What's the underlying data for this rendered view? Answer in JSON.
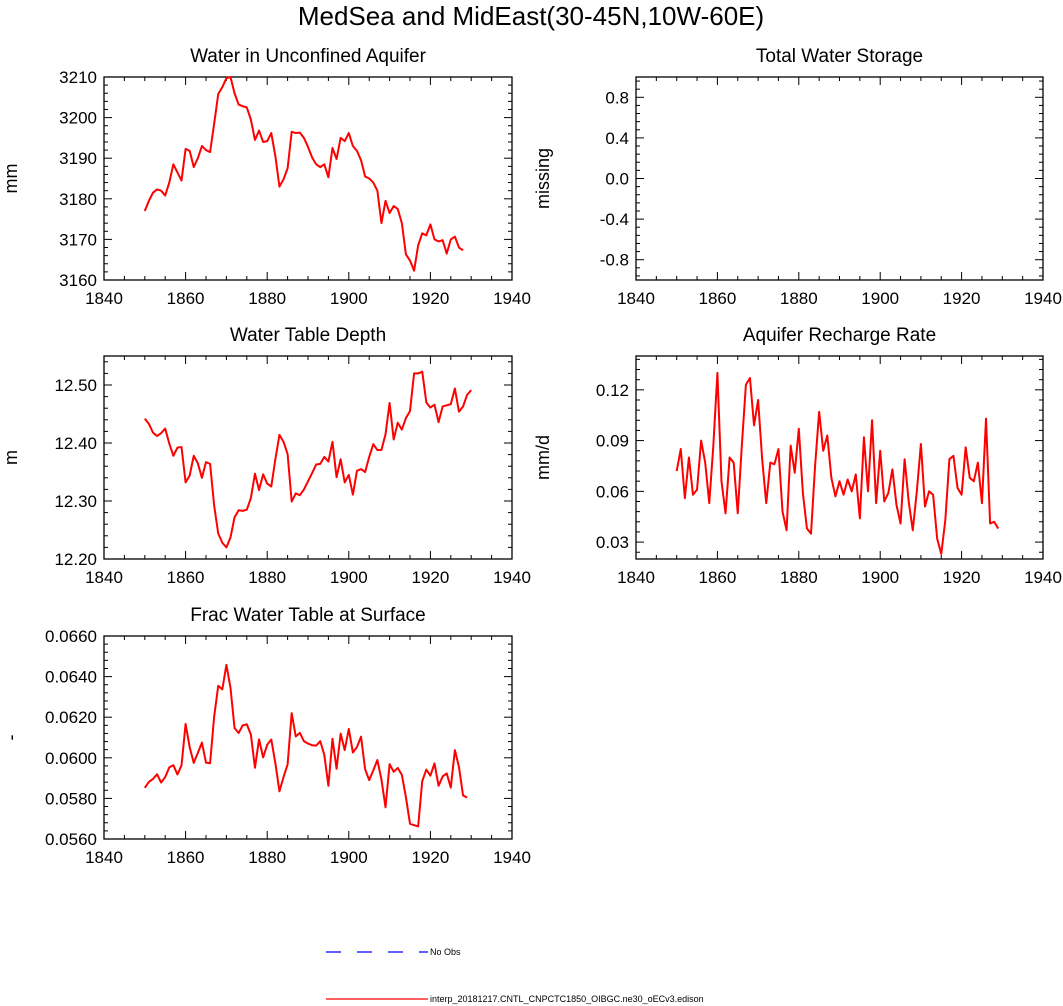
{
  "figure": {
    "title": "MedSea and MidEast(30-45N,10W-60E)"
  },
  "colors": {
    "model": "#ff0000",
    "obs": "#0000ff",
    "axis": "#000000"
  },
  "legend": [
    {
      "label": "No Obs",
      "style": "dashed",
      "color": "#0000ff"
    },
    {
      "label": "interp_20181217.CNTL_CNPCTC1850_OIBGC.ne30_oECv3.edison",
      "style": "solid",
      "color": "#ff0000"
    }
  ],
  "chart_data": [
    {
      "type": "line",
      "title": "Water in Unconfined Aquifer",
      "xlabel": "",
      "ylabel": "mm",
      "xlim": [
        1840,
        1940
      ],
      "ylim": [
        3160,
        3210
      ],
      "xticks": [
        "1840",
        "1860",
        "1880",
        "1900",
        "1920",
        "1940"
      ],
      "yticks": [
        "3160",
        "3170",
        "3180",
        "3190",
        "3200",
        "3210"
      ],
      "x_start": 1850,
      "values": [
        3177.0,
        3179.5,
        3181.5,
        3182.3,
        3182.0,
        3180.8,
        3184.0,
        3188.5,
        3186.5,
        3184.5,
        3192.3,
        3191.8,
        3187.8,
        3190.0,
        3193.0,
        3192.0,
        3191.5,
        3198.5,
        3205.8,
        3207.5,
        3209.7,
        3210.0,
        3206.0,
        3203.2,
        3202.8,
        3202.5,
        3199.5,
        3194.5,
        3196.8,
        3194.0,
        3194.2,
        3196.2,
        3190.5,
        3183.0,
        3184.8,
        3187.5,
        3196.5,
        3196.2,
        3196.3,
        3195.0,
        3192.8,
        3190.2,
        3188.5,
        3187.8,
        3188.5,
        3185.3,
        3192.5,
        3189.8,
        3195.0,
        3194.2,
        3196.2,
        3193.0,
        3191.8,
        3189.5,
        3185.5,
        3185.0,
        3184.0,
        3182.0,
        3174.0,
        3179.5,
        3176.5,
        3178.2,
        3177.5,
        3174.0,
        3166.3,
        3164.8,
        3162.3,
        3168.5,
        3171.5,
        3171.0,
        3173.7,
        3170.0,
        3169.5,
        3169.8,
        3166.5,
        3170.0,
        3170.7,
        3168.0,
        3167.3
      ]
    },
    {
      "type": "line",
      "title": "Total Water Storage",
      "xlabel": "",
      "ylabel": "missing",
      "xlim": [
        1840,
        1940
      ],
      "ylim": [
        -1,
        1
      ],
      "xticks": [
        "1840",
        "1860",
        "1880",
        "1900",
        "1920",
        "1940"
      ],
      "yticks": [
        "-0.8",
        "-0.4",
        "0.0",
        "0.4",
        "0.8"
      ],
      "ytick_values": [
        -0.8,
        -0.4,
        0.0,
        0.4,
        0.8
      ],
      "x_start": 1850,
      "values": []
    },
    {
      "type": "line",
      "title": "Water Table Depth",
      "xlabel": "",
      "ylabel": "m",
      "xlim": [
        1840,
        1940
      ],
      "ylim": [
        12.2,
        12.55
      ],
      "xticks": [
        "1840",
        "1860",
        "1880",
        "1900",
        "1920",
        "1940"
      ],
      "yticks": [
        "12.20",
        "12.30",
        "12.40",
        "12.50"
      ],
      "ytick_values": [
        12.2,
        12.3,
        12.4,
        12.5
      ],
      "x_start": 1850,
      "values": [
        12.442,
        12.433,
        12.418,
        12.412,
        12.417,
        12.425,
        12.399,
        12.378,
        12.392,
        12.393,
        12.332,
        12.344,
        12.378,
        12.365,
        12.34,
        12.367,
        12.364,
        12.292,
        12.244,
        12.228,
        12.22,
        12.237,
        12.272,
        12.284,
        12.283,
        12.285,
        12.305,
        12.347,
        12.319,
        12.346,
        12.33,
        12.325,
        12.372,
        12.414,
        12.402,
        12.381,
        12.299,
        12.313,
        12.31,
        12.32,
        12.334,
        12.348,
        12.363,
        12.364,
        12.376,
        12.368,
        12.402,
        12.341,
        12.372,
        12.332,
        12.345,
        12.311,
        12.352,
        12.355,
        12.35,
        12.376,
        12.398,
        12.388,
        12.388,
        12.415,
        12.469,
        12.406,
        12.435,
        12.423,
        12.443,
        12.455,
        12.52,
        12.52,
        12.523,
        12.47,
        12.461,
        12.466,
        12.436,
        12.463,
        12.465,
        12.467,
        12.494,
        12.454,
        12.463,
        12.483,
        12.491
      ]
    },
    {
      "type": "line",
      "title": "Aquifer Recharge Rate",
      "xlabel": "",
      "ylabel": "mm/d",
      "xlim": [
        1840,
        1940
      ],
      "ylim": [
        0.02,
        0.14
      ],
      "xticks": [
        "1840",
        "1860",
        "1880",
        "1900",
        "1920",
        "1940"
      ],
      "yticks": [
        "0.03",
        "0.06",
        "0.09",
        "0.12"
      ],
      "ytick_values": [
        0.03,
        0.06,
        0.09,
        0.12
      ],
      "x_start": 1850,
      "values": [
        0.072,
        0.085,
        0.056,
        0.08,
        0.058,
        0.061,
        0.09,
        0.077,
        0.053,
        0.087,
        0.13,
        0.066,
        0.047,
        0.08,
        0.077,
        0.047,
        0.087,
        0.123,
        0.127,
        0.099,
        0.114,
        0.079,
        0.053,
        0.077,
        0.076,
        0.085,
        0.048,
        0.037,
        0.087,
        0.071,
        0.097,
        0.059,
        0.038,
        0.035,
        0.075,
        0.107,
        0.084,
        0.093,
        0.068,
        0.057,
        0.066,
        0.058,
        0.067,
        0.06,
        0.07,
        0.044,
        0.092,
        0.06,
        0.102,
        0.053,
        0.084,
        0.054,
        0.059,
        0.073,
        0.052,
        0.041,
        0.079,
        0.054,
        0.037,
        0.06,
        0.088,
        0.051,
        0.06,
        0.058,
        0.032,
        0.023,
        0.043,
        0.079,
        0.081,
        0.062,
        0.058,
        0.086,
        0.068,
        0.066,
        0.077,
        0.053,
        0.103,
        0.041,
        0.042,
        0.038
      ]
    },
    {
      "type": "line",
      "title": "Frac Water Table at Surface",
      "xlabel": "",
      "ylabel": "-",
      "xlim": [
        1840,
        1940
      ],
      "ylim": [
        0.056,
        0.066
      ],
      "xticks": [
        "1840",
        "1860",
        "1880",
        "1900",
        "1920",
        "1940"
      ],
      "yticks": [
        "0.0560",
        "0.0580",
        "0.0600",
        "0.0620",
        "0.0640",
        "0.0660"
      ],
      "ytick_values": [
        0.056,
        0.058,
        0.06,
        0.062,
        0.064,
        0.066
      ],
      "x_start": 1850,
      "values": [
        0.05852,
        0.05881,
        0.05896,
        0.05919,
        0.05878,
        0.05905,
        0.05953,
        0.05964,
        0.05918,
        0.05963,
        0.06167,
        0.06052,
        0.05975,
        0.06024,
        0.06075,
        0.05976,
        0.05973,
        0.06203,
        0.06355,
        0.06337,
        0.06458,
        0.06345,
        0.06146,
        0.06122,
        0.0616,
        0.06165,
        0.06114,
        0.05951,
        0.06091,
        0.06002,
        0.06064,
        0.0609,
        0.05974,
        0.05835,
        0.05905,
        0.05967,
        0.0622,
        0.06105,
        0.06123,
        0.06082,
        0.0607,
        0.06062,
        0.0606,
        0.06082,
        0.06014,
        0.05862,
        0.06094,
        0.05946,
        0.06119,
        0.06038,
        0.06142,
        0.06026,
        0.06053,
        0.06104,
        0.05944,
        0.0589,
        0.05938,
        0.05989,
        0.05893,
        0.05756,
        0.05969,
        0.05931,
        0.0595,
        0.05916,
        0.05806,
        0.05675,
        0.05668,
        0.05662,
        0.05885,
        0.05942,
        0.05912,
        0.05972,
        0.05862,
        0.05908,
        0.05923,
        0.05853,
        0.06038,
        0.05955,
        0.05815,
        0.05804
      ]
    }
  ]
}
